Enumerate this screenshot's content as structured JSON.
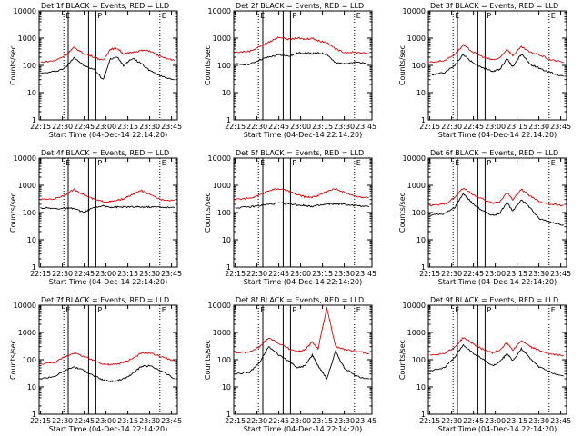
{
  "window": {
    "title": ""
  },
  "colors": {
    "events": "#000000",
    "lld": "#e00000",
    "axes": "#000000",
    "background": "#ffffff"
  },
  "common": {
    "xlabel": "Start Time (04-Dec-14 22:14:20)",
    "ylabel": "Counts/sec",
    "xticks": [
      "22:15",
      "22:30",
      "22:45",
      "23:00",
      "23:15",
      "23:30",
      "23:45"
    ],
    "yticks": [
      "1",
      "10",
      "100",
      "1000",
      "10000"
    ],
    "flags": [
      "E",
      "P",
      "E"
    ],
    "dotted_lines_time": [
      "22:31",
      "23:37"
    ],
    "solid_lines_time": [
      "22:48",
      "22:53"
    ],
    "solid_lines_time_left": "22:34"
  },
  "chart_data": [
    {
      "type": "line",
      "title": "Det 1f BLACK = Events, RED = LLD",
      "xlim": [
        "22:14",
        "23:49"
      ],
      "ylim": [
        1,
        10000
      ],
      "yscale": "log",
      "series": [
        {
          "name": "Events",
          "x": [
            "22:15",
            "22:25",
            "22:32",
            "22:38",
            "22:45",
            "22:52",
            "22:58",
            "23:03",
            "23:08",
            "23:12",
            "23:18",
            "23:24",
            "23:30",
            "23:38",
            "23:47"
          ],
          "values": [
            50,
            60,
            80,
            200,
            95,
            70,
            30,
            170,
            200,
            100,
            180,
            120,
            65,
            40,
            30
          ]
        },
        {
          "name": "LLD",
          "x": [
            "22:15",
            "22:25",
            "22:32",
            "22:38",
            "22:45",
            "22:52",
            "22:58",
            "23:03",
            "23:08",
            "23:12",
            "23:18",
            "23:24",
            "23:30",
            "23:38",
            "23:47"
          ],
          "values": [
            130,
            150,
            230,
            450,
            270,
            200,
            150,
            400,
            420,
            260,
            300,
            350,
            340,
            200,
            150
          ]
        }
      ]
    },
    {
      "type": "line",
      "title": "Det 2f BLACK = Events, RED = LLD",
      "xlim": [
        "22:14",
        "23:49"
      ],
      "ylim": [
        1,
        10000
      ],
      "yscale": "log",
      "series": [
        {
          "name": "Events",
          "x": [
            "22:15",
            "22:25",
            "22:32",
            "22:38",
            "22:45",
            "22:52",
            "22:58",
            "23:03",
            "23:08",
            "23:12",
            "23:18",
            "23:24",
            "23:30",
            "23:38",
            "23:47"
          ],
          "values": [
            110,
            110,
            160,
            200,
            240,
            220,
            280,
            290,
            270,
            280,
            260,
            120,
            120,
            130,
            110
          ]
        },
        {
          "name": "LLD",
          "x": [
            "22:15",
            "22:25",
            "22:32",
            "22:38",
            "22:45",
            "22:52",
            "22:58",
            "23:03",
            "23:08",
            "23:12",
            "23:18",
            "23:24",
            "23:30",
            "23:38",
            "23:47"
          ],
          "values": [
            300,
            330,
            500,
            700,
            1100,
            900,
            1000,
            900,
            1000,
            800,
            700,
            400,
            300,
            300,
            280
          ]
        }
      ]
    },
    {
      "type": "line",
      "title": "Det 3f BLACK = Events, RED = LLD",
      "xlim": [
        "22:14",
        "23:49"
      ],
      "ylim": [
        1,
        10000
      ],
      "yscale": "log",
      "series": [
        {
          "name": "Events",
          "x": [
            "22:15",
            "22:25",
            "22:32",
            "22:38",
            "22:45",
            "22:52",
            "22:58",
            "23:03",
            "23:08",
            "23:12",
            "23:18",
            "23:24",
            "23:30",
            "23:38",
            "23:47"
          ],
          "values": [
            45,
            55,
            100,
            250,
            120,
            80,
            60,
            70,
            180,
            90,
            260,
            110,
            80,
            55,
            40
          ]
        },
        {
          "name": "LLD",
          "x": [
            "22:15",
            "22:25",
            "22:32",
            "22:38",
            "22:45",
            "22:52",
            "22:58",
            "23:03",
            "23:08",
            "23:12",
            "23:18",
            "23:24",
            "23:30",
            "23:38",
            "23:47"
          ],
          "values": [
            130,
            150,
            250,
            550,
            300,
            200,
            160,
            180,
            400,
            230,
            480,
            300,
            250,
            160,
            130
          ]
        }
      ]
    },
    {
      "type": "line",
      "title": "Det 4f BLACK = Events, RED = LLD",
      "xlim": [
        "22:14",
        "23:49"
      ],
      "ylim": [
        1,
        10000
      ],
      "yscale": "log",
      "series": [
        {
          "name": "Events",
          "x": [
            "22:15",
            "22:25",
            "22:32",
            "22:38",
            "22:45",
            "22:52",
            "22:58",
            "23:03",
            "23:08",
            "23:12",
            "23:18",
            "23:24",
            "23:30",
            "23:38",
            "23:47"
          ],
          "values": [
            150,
            140,
            140,
            140,
            100,
            160,
            170,
            160,
            160,
            160,
            160,
            160,
            160,
            160,
            150
          ]
        },
        {
          "name": "LLD",
          "x": [
            "22:15",
            "22:25",
            "22:32",
            "22:38",
            "22:45",
            "22:52",
            "22:58",
            "23:03",
            "23:08",
            "23:12",
            "23:18",
            "23:24",
            "23:30",
            "23:38",
            "23:47"
          ],
          "values": [
            300,
            320,
            450,
            700,
            450,
            300,
            250,
            250,
            280,
            320,
            450,
            650,
            450,
            300,
            280
          ]
        }
      ]
    },
    {
      "type": "line",
      "title": "Det 5f BLACK = Events, RED = LLD",
      "xlim": [
        "22:14",
        "23:49"
      ],
      "ylim": [
        1,
        10000
      ],
      "yscale": "log",
      "series": [
        {
          "name": "Events",
          "x": [
            "22:15",
            "22:25",
            "22:32",
            "22:38",
            "22:45",
            "22:52",
            "22:58",
            "23:03",
            "23:08",
            "23:12",
            "23:18",
            "23:24",
            "23:30",
            "23:38",
            "23:47"
          ],
          "values": [
            150,
            160,
            180,
            200,
            220,
            210,
            190,
            180,
            170,
            180,
            200,
            210,
            200,
            180,
            160
          ]
        },
        {
          "name": "LLD",
          "x": [
            "22:15",
            "22:25",
            "22:32",
            "22:38",
            "22:45",
            "22:52",
            "22:58",
            "23:03",
            "23:08",
            "23:12",
            "23:18",
            "23:24",
            "23:30",
            "23:38",
            "23:47"
          ],
          "values": [
            300,
            330,
            450,
            650,
            750,
            600,
            450,
            380,
            370,
            420,
            600,
            750,
            550,
            400,
            350
          ]
        }
      ]
    },
    {
      "type": "line",
      "title": "Det 6f BLACK = Events, RED = LLD",
      "xlim": [
        "22:14",
        "23:49"
      ],
      "ylim": [
        1,
        10000
      ],
      "yscale": "log",
      "series": [
        {
          "name": "Events",
          "x": [
            "22:15",
            "22:25",
            "22:32",
            "22:38",
            "22:45",
            "22:52",
            "22:58",
            "23:03",
            "23:08",
            "23:12",
            "23:18",
            "23:24",
            "23:30",
            "23:38",
            "23:47"
          ],
          "values": [
            80,
            90,
            150,
            500,
            200,
            110,
            80,
            90,
            250,
            110,
            300,
            150,
            60,
            45,
            35
          ]
        },
        {
          "name": "LLD",
          "x": [
            "22:15",
            "22:25",
            "22:32",
            "22:38",
            "22:45",
            "22:52",
            "22:58",
            "23:03",
            "23:08",
            "23:12",
            "23:18",
            "23:24",
            "23:30",
            "23:38",
            "23:47"
          ],
          "values": [
            180,
            200,
            350,
            800,
            450,
            300,
            220,
            250,
            550,
            300,
            700,
            400,
            250,
            200,
            180
          ]
        }
      ]
    },
    {
      "type": "line",
      "title": "Det 7f BLACK = Events, RED = LLD",
      "xlim": [
        "22:14",
        "23:49"
      ],
      "ylim": [
        1,
        10000
      ],
      "yscale": "log",
      "series": [
        {
          "name": "Events",
          "x": [
            "22:15",
            "22:25",
            "22:32",
            "22:38",
            "22:45",
            "22:52",
            "22:58",
            "23:03",
            "23:08",
            "23:12",
            "23:18",
            "23:24",
            "23:30",
            "23:38",
            "23:47"
          ],
          "values": [
            20,
            25,
            40,
            55,
            40,
            25,
            18,
            16,
            17,
            20,
            30,
            55,
            60,
            40,
            20
          ]
        },
        {
          "name": "LLD",
          "x": [
            "22:15",
            "22:25",
            "22:32",
            "22:38",
            "22:45",
            "22:52",
            "22:58",
            "23:03",
            "23:08",
            "23:12",
            "23:18",
            "23:24",
            "23:30",
            "23:38",
            "23:47"
          ],
          "values": [
            70,
            80,
            130,
            180,
            130,
            90,
            70,
            65,
            70,
            80,
            110,
            170,
            180,
            130,
            90
          ]
        }
      ]
    },
    {
      "type": "line",
      "title": "Det 8f BLACK = Events, RED = LLD",
      "xlim": [
        "22:14",
        "23:49"
      ],
      "ylim": [
        1,
        10000
      ],
      "yscale": "log",
      "series": [
        {
          "name": "Events",
          "x": [
            "22:15",
            "22:25",
            "22:32",
            "22:38",
            "22:45",
            "22:52",
            "22:58",
            "23:03",
            "23:08",
            "23:12",
            "23:18",
            "23:24",
            "23:30",
            "23:38",
            "23:47"
          ],
          "values": [
            30,
            35,
            80,
            300,
            150,
            90,
            50,
            60,
            150,
            60,
            20,
            200,
            50,
            25,
            20
          ]
        },
        {
          "name": "LLD",
          "x": [
            "22:15",
            "22:25",
            "22:32",
            "22:38",
            "22:45",
            "22:52",
            "22:58",
            "23:03",
            "23:08",
            "23:12",
            "23:18",
            "23:24",
            "23:30",
            "23:38",
            "23:47"
          ],
          "values": [
            180,
            190,
            300,
            650,
            400,
            250,
            200,
            230,
            450,
            250,
            8000,
            300,
            240,
            200,
            170
          ]
        }
      ]
    },
    {
      "type": "line",
      "title": "Det 9f BLACK = Events, RED = LLD",
      "xlim": [
        "22:14",
        "23:49"
      ],
      "ylim": [
        1,
        10000
      ],
      "yscale": "log",
      "series": [
        {
          "name": "Events",
          "x": [
            "22:15",
            "22:25",
            "22:32",
            "22:38",
            "22:45",
            "22:52",
            "22:58",
            "23:03",
            "23:08",
            "23:12",
            "23:18",
            "23:24",
            "23:30",
            "23:38",
            "23:47"
          ],
          "values": [
            40,
            50,
            120,
            350,
            170,
            100,
            60,
            80,
            170,
            90,
            250,
            110,
            55,
            35,
            25
          ]
        },
        {
          "name": "LLD",
          "x": [
            "22:15",
            "22:25",
            "22:32",
            "22:38",
            "22:45",
            "22:52",
            "22:58",
            "23:03",
            "23:08",
            "23:12",
            "23:18",
            "23:24",
            "23:30",
            "23:38",
            "23:47"
          ],
          "values": [
            150,
            170,
            280,
            650,
            380,
            230,
            180,
            220,
            430,
            230,
            500,
            300,
            220,
            160,
            140
          ]
        }
      ]
    }
  ]
}
